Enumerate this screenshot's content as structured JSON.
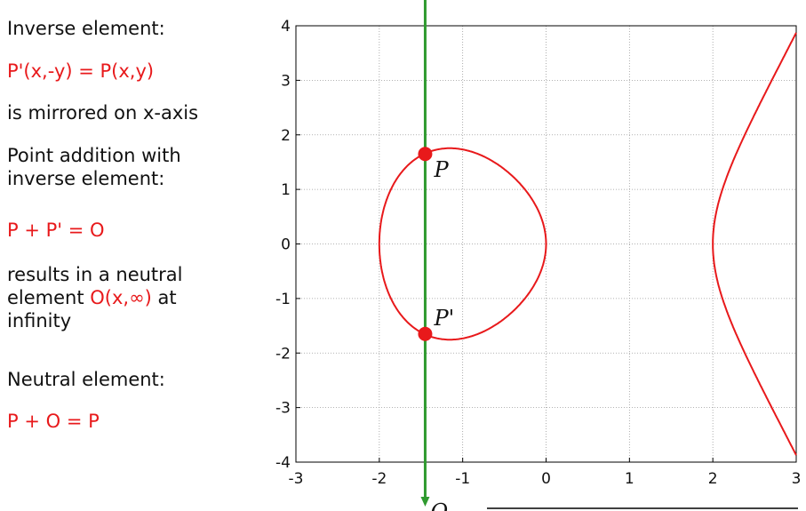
{
  "left_panel": {
    "inverse_heading": "Inverse element:",
    "inverse_formula": "P'(x,-y) = P(x,y)",
    "mirrored_text": "is mirrored on x-axis",
    "addition_heading_1": "Point addition with",
    "addition_heading_2": "inverse element:",
    "addition_formula": "P + P' = O",
    "result_line_1": "results in a neutral",
    "result_line_2_prefix": "element ",
    "result_line_2_red": "O(x,∞)",
    "result_line_2_suffix": " at",
    "result_line_3": "infinity",
    "neutral_heading": "Neutral element:",
    "neutral_formula": "P + O = P"
  },
  "colors": {
    "curve": "#e8191b",
    "vertical_line": "#2f9a2f",
    "point": "#e8191b",
    "text_red": "#e8191b"
  },
  "chart_data": {
    "type": "line",
    "xlim": [
      -3,
      3
    ],
    "ylim": [
      -4,
      4
    ],
    "xticks": [
      "-3",
      "-2",
      "-1",
      "0",
      "1",
      "2",
      "3"
    ],
    "yticks": [
      "-4",
      "-3",
      "-2",
      "-1",
      "0",
      "1",
      "2",
      "3",
      "4"
    ],
    "xtick_values": [
      -3,
      -2,
      -1,
      0,
      1,
      2,
      3
    ],
    "ytick_values": [
      -4,
      -3,
      -2,
      -1,
      0,
      1,
      2,
      3,
      4
    ],
    "grid": true,
    "curve_equation": "y^2 = x^3 - 4x",
    "vertical_line_x": -1.45,
    "points": [
      {
        "label": "P",
        "x": -1.45,
        "y": 1.65
      },
      {
        "label": "P'",
        "x": -1.45,
        "y": -1.65
      }
    ],
    "infinity_label": "O"
  }
}
